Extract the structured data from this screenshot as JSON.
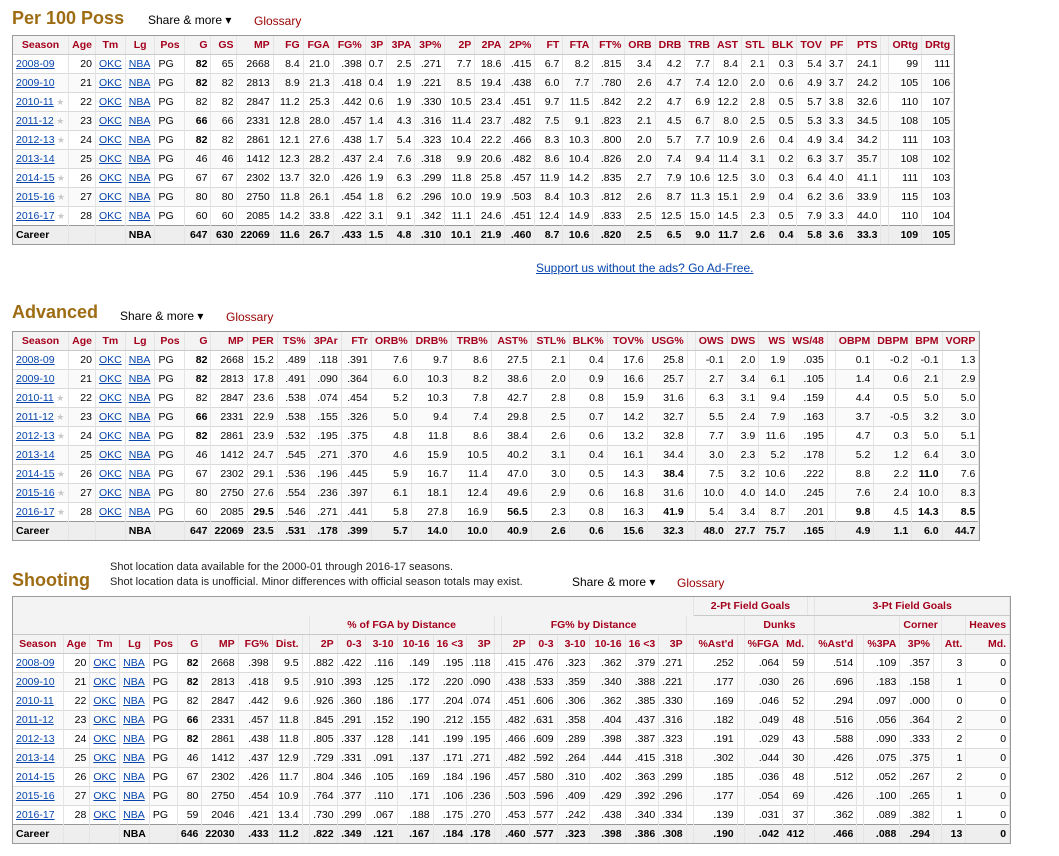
{
  "per100": {
    "title": "Per 100 Poss",
    "share": "Share & more ▾",
    "glossary": "Glossary",
    "headers": [
      "Season",
      "Age",
      "Tm",
      "Lg",
      "Pos",
      "G",
      "GS",
      "MP",
      "FG",
      "FGA",
      "FG%",
      "3P",
      "3PA",
      "3P%",
      "2P",
      "2PA",
      "2P%",
      "FT",
      "FTA",
      "FT%",
      "ORB",
      "DRB",
      "TRB",
      "AST",
      "STL",
      "BLK",
      "TOV",
      "PF",
      "PTS",
      "",
      "ORtg",
      "DRtg"
    ],
    "rows": [
      [
        "2008-09",
        "20",
        "OKC",
        "NBA",
        "PG",
        "82",
        "65",
        "2668",
        "8.4",
        "21.0",
        ".398",
        "0.7",
        "2.5",
        ".271",
        "7.7",
        "18.6",
        ".415",
        "6.7",
        "8.2",
        ".815",
        "3.4",
        "4.2",
        "7.7",
        "8.4",
        "2.1",
        "0.3",
        "5.4",
        "3.7",
        "24.1",
        "",
        "99",
        "111"
      ],
      [
        "2009-10",
        "21",
        "OKC",
        "NBA",
        "PG",
        "82",
        "82",
        "2813",
        "8.9",
        "21.3",
        ".418",
        "0.4",
        "1.9",
        ".221",
        "8.5",
        "19.4",
        ".438",
        "6.0",
        "7.7",
        ".780",
        "2.6",
        "4.7",
        "7.4",
        "12.0",
        "2.0",
        "0.6",
        "4.9",
        "3.7",
        "24.2",
        "",
        "105",
        "106"
      ],
      [
        "2010-11",
        "22",
        "OKC",
        "NBA",
        "PG",
        "82",
        "82",
        "2847",
        "11.2",
        "25.3",
        ".442",
        "0.6",
        "1.9",
        ".330",
        "10.5",
        "23.4",
        ".451",
        "9.7",
        "11.5",
        ".842",
        "2.2",
        "4.7",
        "6.9",
        "12.2",
        "2.8",
        "0.5",
        "5.7",
        "3.8",
        "32.6",
        "",
        "110",
        "107"
      ],
      [
        "2011-12",
        "23",
        "OKC",
        "NBA",
        "PG",
        "66",
        "66",
        "2331",
        "12.8",
        "28.0",
        ".457",
        "1.4",
        "4.3",
        ".316",
        "11.4",
        "23.7",
        ".482",
        "7.5",
        "9.1",
        ".823",
        "2.1",
        "4.5",
        "6.7",
        "8.0",
        "2.5",
        "0.5",
        "5.3",
        "3.3",
        "34.5",
        "",
        "108",
        "105"
      ],
      [
        "2012-13",
        "24",
        "OKC",
        "NBA",
        "PG",
        "82",
        "82",
        "2861",
        "12.1",
        "27.6",
        ".438",
        "1.7",
        "5.4",
        ".323",
        "10.4",
        "22.2",
        ".466",
        "8.3",
        "10.3",
        ".800",
        "2.0",
        "5.7",
        "7.7",
        "10.9",
        "2.6",
        "0.4",
        "4.9",
        "3.4",
        "34.2",
        "",
        "111",
        "103"
      ],
      [
        "2013-14",
        "25",
        "OKC",
        "NBA",
        "PG",
        "46",
        "46",
        "1412",
        "12.3",
        "28.2",
        ".437",
        "2.4",
        "7.6",
        ".318",
        "9.9",
        "20.6",
        ".482",
        "8.6",
        "10.4",
        ".826",
        "2.0",
        "7.4",
        "9.4",
        "11.4",
        "3.1",
        "0.2",
        "6.3",
        "3.7",
        "35.7",
        "",
        "108",
        "102"
      ],
      [
        "2014-15",
        "26",
        "OKC",
        "NBA",
        "PG",
        "67",
        "67",
        "2302",
        "13.7",
        "32.0",
        ".426",
        "1.9",
        "6.3",
        ".299",
        "11.8",
        "25.8",
        ".457",
        "11.9",
        "14.2",
        ".835",
        "2.7",
        "7.9",
        "10.6",
        "12.5",
        "3.0",
        "0.3",
        "6.4",
        "4.0",
        "41.1",
        "",
        "111",
        "103"
      ],
      [
        "2015-16",
        "27",
        "OKC",
        "NBA",
        "PG",
        "80",
        "80",
        "2750",
        "11.8",
        "26.1",
        ".454",
        "1.8",
        "6.2",
        ".296",
        "10.0",
        "19.9",
        ".503",
        "8.4",
        "10.3",
        ".812",
        "2.6",
        "8.7",
        "11.3",
        "15.1",
        "2.9",
        "0.4",
        "6.2",
        "3.6",
        "33.9",
        "",
        "115",
        "103"
      ],
      [
        "2016-17",
        "28",
        "OKC",
        "NBA",
        "PG",
        "60",
        "60",
        "2085",
        "14.2",
        "33.8",
        ".422",
        "3.1",
        "9.1",
        ".342",
        "11.1",
        "24.6",
        ".451",
        "12.4",
        "14.9",
        ".833",
        "2.5",
        "12.5",
        "15.0",
        "14.5",
        "2.3",
        "0.5",
        "7.9",
        "3.3",
        "44.0",
        "",
        "110",
        "104"
      ]
    ],
    "stars": [
      false,
      false,
      true,
      true,
      true,
      false,
      true,
      true,
      true
    ],
    "bold": [
      [
        5
      ],
      [
        5
      ],
      [],
      [
        5
      ],
      [
        5
      ],
      [],
      [],
      [],
      []
    ],
    "career": [
      "Career",
      "",
      "",
      "NBA",
      "",
      "647",
      "630",
      "22069",
      "11.6",
      "26.7",
      ".433",
      "1.5",
      "4.8",
      ".310",
      "10.1",
      "21.9",
      ".460",
      "8.7",
      "10.6",
      ".820",
      "2.5",
      "6.5",
      "9.0",
      "11.7",
      "2.6",
      "0.4",
      "5.8",
      "3.6",
      "33.3",
      "",
      "109",
      "105"
    ]
  },
  "ad_link": "Support us without the ads? Go Ad-Free.",
  "advanced": {
    "title": "Advanced",
    "share": "Share & more ▾",
    "glossary": "Glossary",
    "headers": [
      "Season",
      "Age",
      "Tm",
      "Lg",
      "Pos",
      "G",
      "MP",
      "PER",
      "TS%",
      "3PAr",
      "FTr",
      "ORB%",
      "DRB%",
      "TRB%",
      "AST%",
      "STL%",
      "BLK%",
      "TOV%",
      "USG%",
      "",
      "OWS",
      "DWS",
      "WS",
      "WS/48",
      "",
      "OBPM",
      "DBPM",
      "BPM",
      "VORP"
    ],
    "rows": [
      [
        "2008-09",
        "20",
        "OKC",
        "NBA",
        "PG",
        "82",
        "2668",
        "15.2",
        ".489",
        ".118",
        ".391",
        "7.6",
        "9.7",
        "8.6",
        "27.5",
        "2.1",
        "0.4",
        "17.6",
        "25.8",
        "",
        "-0.1",
        "2.0",
        "1.9",
        ".035",
        "",
        "0.1",
        "-0.2",
        "-0.1",
        "1.3"
      ],
      [
        "2009-10",
        "21",
        "OKC",
        "NBA",
        "PG",
        "82",
        "2813",
        "17.8",
        ".491",
        ".090",
        ".364",
        "6.0",
        "10.3",
        "8.2",
        "38.6",
        "2.0",
        "0.9",
        "16.6",
        "25.7",
        "",
        "2.7",
        "3.4",
        "6.1",
        ".105",
        "",
        "1.4",
        "0.6",
        "2.1",
        "2.9"
      ],
      [
        "2010-11",
        "22",
        "OKC",
        "NBA",
        "PG",
        "82",
        "2847",
        "23.6",
        ".538",
        ".074",
        ".454",
        "5.2",
        "10.3",
        "7.8",
        "42.7",
        "2.8",
        "0.8",
        "15.9",
        "31.6",
        "",
        "6.3",
        "3.1",
        "9.4",
        ".159",
        "",
        "4.4",
        "0.5",
        "5.0",
        "5.0"
      ],
      [
        "2011-12",
        "23",
        "OKC",
        "NBA",
        "PG",
        "66",
        "2331",
        "22.9",
        ".538",
        ".155",
        ".326",
        "5.0",
        "9.4",
        "7.4",
        "29.8",
        "2.5",
        "0.7",
        "14.2",
        "32.7",
        "",
        "5.5",
        "2.4",
        "7.9",
        ".163",
        "",
        "3.7",
        "-0.5",
        "3.2",
        "3.0"
      ],
      [
        "2012-13",
        "24",
        "OKC",
        "NBA",
        "PG",
        "82",
        "2861",
        "23.9",
        ".532",
        ".195",
        ".375",
        "4.8",
        "11.8",
        "8.6",
        "38.4",
        "2.6",
        "0.6",
        "13.2",
        "32.8",
        "",
        "7.7",
        "3.9",
        "11.6",
        ".195",
        "",
        "4.7",
        "0.3",
        "5.0",
        "5.1"
      ],
      [
        "2013-14",
        "25",
        "OKC",
        "NBA",
        "PG",
        "46",
        "1412",
        "24.7",
        ".545",
        ".271",
        ".370",
        "4.6",
        "15.9",
        "10.5",
        "40.2",
        "3.1",
        "0.4",
        "16.1",
        "34.4",
        "",
        "3.0",
        "2.3",
        "5.2",
        ".178",
        "",
        "5.2",
        "1.2",
        "6.4",
        "3.0"
      ],
      [
        "2014-15",
        "26",
        "OKC",
        "NBA",
        "PG",
        "67",
        "2302",
        "29.1",
        ".536",
        ".196",
        ".445",
        "5.9",
        "16.7",
        "11.4",
        "47.0",
        "3.0",
        "0.5",
        "14.3",
        "38.4",
        "",
        "7.5",
        "3.2",
        "10.6",
        ".222",
        "",
        "8.8",
        "2.2",
        "11.0",
        "7.6"
      ],
      [
        "2015-16",
        "27",
        "OKC",
        "NBA",
        "PG",
        "80",
        "2750",
        "27.6",
        ".554",
        ".236",
        ".397",
        "6.1",
        "18.1",
        "12.4",
        "49.6",
        "2.9",
        "0.6",
        "16.8",
        "31.6",
        "",
        "10.0",
        "4.0",
        "14.0",
        ".245",
        "",
        "7.6",
        "2.4",
        "10.0",
        "8.3"
      ],
      [
        "2016-17",
        "28",
        "OKC",
        "NBA",
        "PG",
        "60",
        "2085",
        "29.5",
        ".546",
        ".271",
        ".441",
        "5.8",
        "27.8",
        "16.9",
        "56.5",
        "2.3",
        "0.8",
        "16.3",
        "41.9",
        "",
        "5.4",
        "3.4",
        "8.7",
        ".201",
        "",
        "9.8",
        "4.5",
        "14.3",
        "8.5"
      ]
    ],
    "stars": [
      false,
      false,
      true,
      true,
      true,
      false,
      true,
      true,
      true
    ],
    "bold": [
      [
        5
      ],
      [
        5
      ],
      [],
      [
        5
      ],
      [
        5
      ],
      [],
      [
        18,
        27
      ],
      [],
      [
        7,
        14,
        18,
        25,
        27,
        28
      ]
    ],
    "career": [
      "Career",
      "",
      "",
      "NBA",
      "",
      "647",
      "22069",
      "23.5",
      ".531",
      ".178",
      ".399",
      "5.7",
      "14.0",
      "10.0",
      "40.9",
      "2.6",
      "0.6",
      "15.6",
      "32.3",
      "",
      "48.0",
      "27.7",
      "75.7",
      ".165",
      "",
      "4.9",
      "1.1",
      "6.0",
      "44.7"
    ]
  },
  "shooting": {
    "title": "Shooting",
    "note1": "Shot location data available for the 2000-01 through 2016-17 seasons.",
    "note2": "Shot location data is unofficial. Minor differences with official season totals may exist.",
    "share": "Share & more ▾",
    "glossary": "Glossary",
    "group1": [
      "",
      "% of FGA by Distance",
      "",
      "FG% by Distance",
      "",
      "2-Pt Field Goals",
      "",
      "3-Pt Field Goals"
    ],
    "group2": [
      "",
      "Dunks",
      "",
      "Corner",
      "",
      "Heaves"
    ],
    "headers": [
      "Season",
      "Age",
      "Tm",
      "Lg",
      "Pos",
      "G",
      "MP",
      "FG%",
      "Dist.",
      "",
      "2P",
      "0-3",
      "3-10",
      "10-16",
      "16 <3",
      "3P",
      "",
      "2P",
      "0-3",
      "3-10",
      "10-16",
      "16 <3",
      "3P",
      "",
      "%Ast'd",
      "",
      "%FGA",
      "Md.",
      "",
      "%Ast'd",
      "",
      "%3PA",
      "3P%",
      "",
      "Att.",
      "Md."
    ],
    "rows": [
      [
        "2008-09",
        "20",
        "OKC",
        "NBA",
        "PG",
        "82",
        "2668",
        ".398",
        "9.5",
        "",
        ".882",
        ".422",
        ".116",
        ".149",
        ".195",
        ".118",
        "",
        ".415",
        ".476",
        ".323",
        ".362",
        ".379",
        ".271",
        "",
        ".252",
        "",
        ".064",
        "59",
        "",
        ".514",
        "",
        ".109",
        ".357",
        "",
        "3",
        "0"
      ],
      [
        "2009-10",
        "21",
        "OKC",
        "NBA",
        "PG",
        "82",
        "2813",
        ".418",
        "9.5",
        "",
        ".910",
        ".393",
        ".125",
        ".172",
        ".220",
        ".090",
        "",
        ".438",
        ".533",
        ".359",
        ".340",
        ".388",
        ".221",
        "",
        ".177",
        "",
        ".030",
        "26",
        "",
        ".696",
        "",
        ".183",
        ".158",
        "",
        "1",
        "0"
      ],
      [
        "2010-11",
        "22",
        "OKC",
        "NBA",
        "PG",
        "82",
        "2847",
        ".442",
        "9.6",
        "",
        ".926",
        ".360",
        ".186",
        ".177",
        ".204",
        ".074",
        "",
        ".451",
        ".606",
        ".306",
        ".362",
        ".385",
        ".330",
        "",
        ".169",
        "",
        ".046",
        "52",
        "",
        ".294",
        "",
        ".097",
        ".000",
        "",
        "0",
        "0"
      ],
      [
        "2011-12",
        "23",
        "OKC",
        "NBA",
        "PG",
        "66",
        "2331",
        ".457",
        "11.8",
        "",
        ".845",
        ".291",
        ".152",
        ".190",
        ".212",
        ".155",
        "",
        ".482",
        ".631",
        ".358",
        ".404",
        ".437",
        ".316",
        "",
        ".182",
        "",
        ".049",
        "48",
        "",
        ".516",
        "",
        ".056",
        ".364",
        "",
        "2",
        "0"
      ],
      [
        "2012-13",
        "24",
        "OKC",
        "NBA",
        "PG",
        "82",
        "2861",
        ".438",
        "11.8",
        "",
        ".805",
        ".337",
        ".128",
        ".141",
        ".199",
        ".195",
        "",
        ".466",
        ".609",
        ".289",
        ".398",
        ".387",
        ".323",
        "",
        ".191",
        "",
        ".029",
        "43",
        "",
        ".588",
        "",
        ".090",
        ".333",
        "",
        "2",
        "0"
      ],
      [
        "2013-14",
        "25",
        "OKC",
        "NBA",
        "PG",
        "46",
        "1412",
        ".437",
        "12.9",
        "",
        ".729",
        ".331",
        ".091",
        ".137",
        ".171",
        ".271",
        "",
        ".482",
        ".592",
        ".264",
        ".444",
        ".415",
        ".318",
        "",
        ".302",
        "",
        ".044",
        "30",
        "",
        ".426",
        "",
        ".075",
        ".375",
        "",
        "1",
        "0"
      ],
      [
        "2014-15",
        "26",
        "OKC",
        "NBA",
        "PG",
        "67",
        "2302",
        ".426",
        "11.7",
        "",
        ".804",
        ".346",
        ".105",
        ".169",
        ".184",
        ".196",
        "",
        ".457",
        ".580",
        ".310",
        ".402",
        ".363",
        ".299",
        "",
        ".185",
        "",
        ".036",
        "48",
        "",
        ".512",
        "",
        ".052",
        ".267",
        "",
        "2",
        "0"
      ],
      [
        "2015-16",
        "27",
        "OKC",
        "NBA",
        "PG",
        "80",
        "2750",
        ".454",
        "10.9",
        "",
        ".764",
        ".377",
        ".110",
        ".171",
        ".106",
        ".236",
        "",
        ".503",
        ".596",
        ".409",
        ".429",
        ".392",
        ".296",
        "",
        ".177",
        "",
        ".054",
        "69",
        "",
        ".426",
        "",
        ".100",
        ".265",
        "",
        "1",
        "0"
      ],
      [
        "2016-17",
        "28",
        "OKC",
        "NBA",
        "PG",
        "59",
        "2046",
        ".421",
        "13.4",
        "",
        ".730",
        ".299",
        ".067",
        ".188",
        ".175",
        ".270",
        "",
        ".453",
        ".577",
        ".242",
        ".438",
        ".340",
        ".334",
        "",
        ".139",
        "",
        ".031",
        "37",
        "",
        ".362",
        "",
        ".089",
        ".382",
        "",
        "1",
        "0"
      ]
    ],
    "bold": [
      [
        5
      ],
      [
        5
      ],
      [],
      [
        5
      ],
      [
        5
      ],
      [],
      [],
      [],
      []
    ],
    "career": [
      "Career",
      "",
      "",
      "NBA",
      "",
      "646",
      "22030",
      ".433",
      "11.2",
      "",
      ".822",
      ".349",
      ".121",
      ".167",
      ".184",
      ".178",
      "",
      ".460",
      ".577",
      ".323",
      ".398",
      ".386",
      ".308",
      "",
      ".190",
      "",
      ".042",
      "412",
      "",
      ".466",
      "",
      ".088",
      ".294",
      "",
      "13",
      "0"
    ]
  }
}
